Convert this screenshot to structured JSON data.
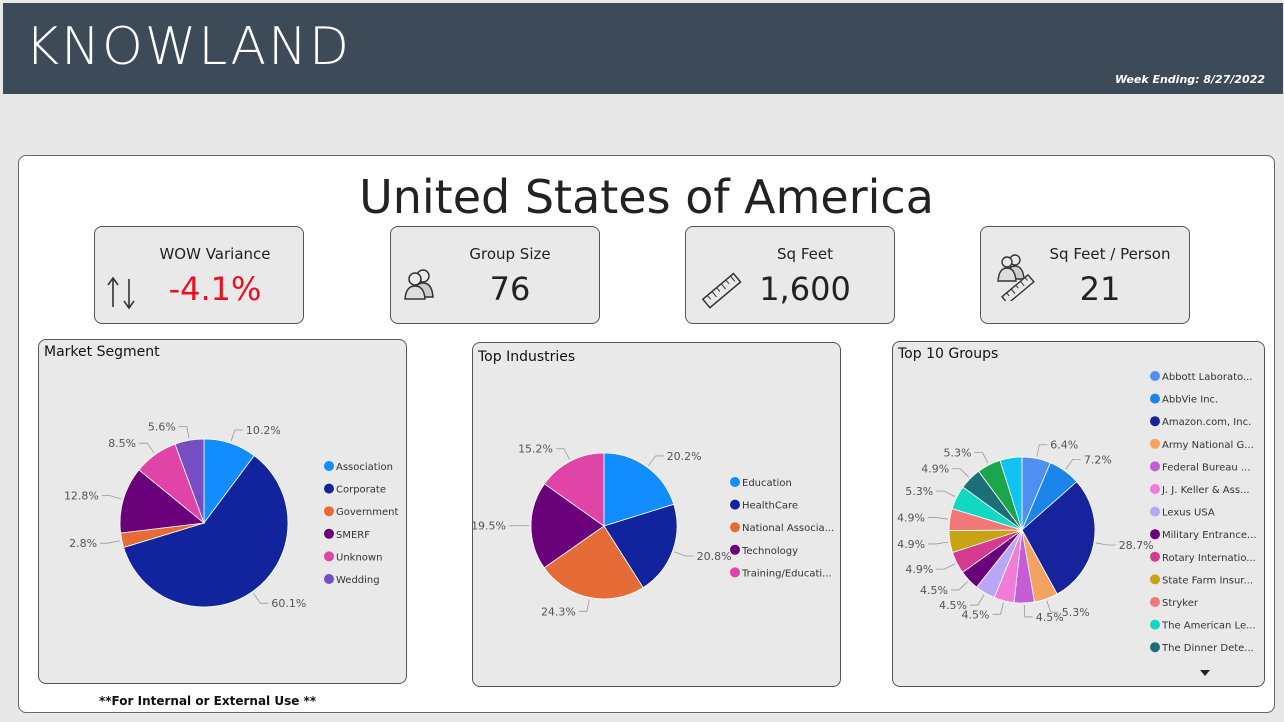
{
  "header": {
    "logo": "KNOWLAND",
    "week_ending": "Week Ending: 8/27/2022",
    "bg_color": "#3d4a58"
  },
  "main": {
    "country": "United States of America",
    "footnote": "**For Internal or External Use **"
  },
  "kpis": {
    "wow": {
      "title": "WOW Variance",
      "value": "-4.1%",
      "icon": "up-down-arrows-icon",
      "value_color": "#e81123"
    },
    "group_size": {
      "title": "Group Size",
      "value": "76",
      "icon": "people-icon"
    },
    "sq_feet": {
      "title": "Sq Feet",
      "value": "1,600",
      "icon": "ruler-icon"
    },
    "sq_feet_person": {
      "title": "Sq Feet / Person",
      "value": "21",
      "icon": "people-ruler-icon"
    }
  },
  "chart_data": [
    {
      "type": "pie",
      "title": "Market Segment",
      "slices": [
        {
          "name": "Association",
          "value": 10.2,
          "label": "10.2%",
          "color": "#118dff"
        },
        {
          "name": "Corporate",
          "value": 60.1,
          "label": "60.1%",
          "color": "#12239e"
        },
        {
          "name": "Government",
          "value": 2.8,
          "label": "2.8%",
          "color": "#e66c37"
        },
        {
          "name": "SMERF",
          "value": 12.8,
          "label": "12.8%",
          "color": "#6b007b"
        },
        {
          "name": "Unknown",
          "value": 8.5,
          "label": "8.5%",
          "color": "#e044a7"
        },
        {
          "name": "Wedding",
          "value": 5.6,
          "label": "5.6%",
          "color": "#744ec2"
        }
      ]
    },
    {
      "type": "pie",
      "title": "Top Industries",
      "slices": [
        {
          "name": "Education",
          "value": 20.2,
          "label": "20.2%",
          "color": "#118dff"
        },
        {
          "name": "HealthCare",
          "value": 20.8,
          "label": "20.8%",
          "color": "#12239e"
        },
        {
          "name": "National Associa...",
          "value": 24.3,
          "label": "24.3%",
          "color": "#e66c37"
        },
        {
          "name": "Technology",
          "value": 19.5,
          "label": "19.5%",
          "color": "#6b007b"
        },
        {
          "name": "Training/Educati...",
          "value": 15.2,
          "label": "15.2%",
          "color": "#e044a7"
        }
      ]
    },
    {
      "type": "pie",
      "title": "Top 10 Groups",
      "slices": [
        {
          "name": "Abbott Laborato...",
          "value": 6.4,
          "label": "6.4%",
          "color": "#4f8ff2"
        },
        {
          "name": "AbbVie Inc.",
          "value": 7.2,
          "label": "7.2%",
          "color": "#1a86ea"
        },
        {
          "name": "Amazon.com, Inc.",
          "value": 28.7,
          "label": "28.7%",
          "color": "#16239c"
        },
        {
          "name": "Army National G...",
          "value": 5.3,
          "label": "5.3%",
          "color": "#f4a261"
        },
        {
          "name": "Federal Bureau ...",
          "value": 4.5,
          "label": "4.5%",
          "color": "#c45dd6"
        },
        {
          "name": "J. J. Keller & Ass...",
          "value": 4.5,
          "label": "4.5%",
          "color": "#f07bd9"
        },
        {
          "name": "Lexus USA",
          "value": 4.5,
          "label": "4.5%",
          "color": "#b9a6f5"
        },
        {
          "name": "Military Entrance...",
          "value": 4.5,
          "label": "4.5%",
          "color": "#6b007b"
        },
        {
          "name": "Rotary Internatio...",
          "value": 4.9,
          "label": "4.9%",
          "color": "#d63a8e"
        },
        {
          "name": "State Farm Insur...",
          "value": 4.9,
          "label": "4.9%",
          "color": "#c9a216"
        },
        {
          "name": "Stryker",
          "value": 4.9,
          "label": "4.9%",
          "color": "#f27878"
        },
        {
          "name": "The American Le...",
          "value": 5.3,
          "label": "5.3%",
          "color": "#12d8c2"
        },
        {
          "name": "The Dinner Dete...",
          "value": 4.9,
          "label": "4.9%",
          "color": "#1d6e78"
        },
        {
          "name": "",
          "value": 5.3,
          "label": "5.3%",
          "color": "#1aa64a"
        },
        {
          "name": "",
          "value": 4.9,
          "label": "",
          "color": "#12c2f0"
        }
      ]
    }
  ]
}
